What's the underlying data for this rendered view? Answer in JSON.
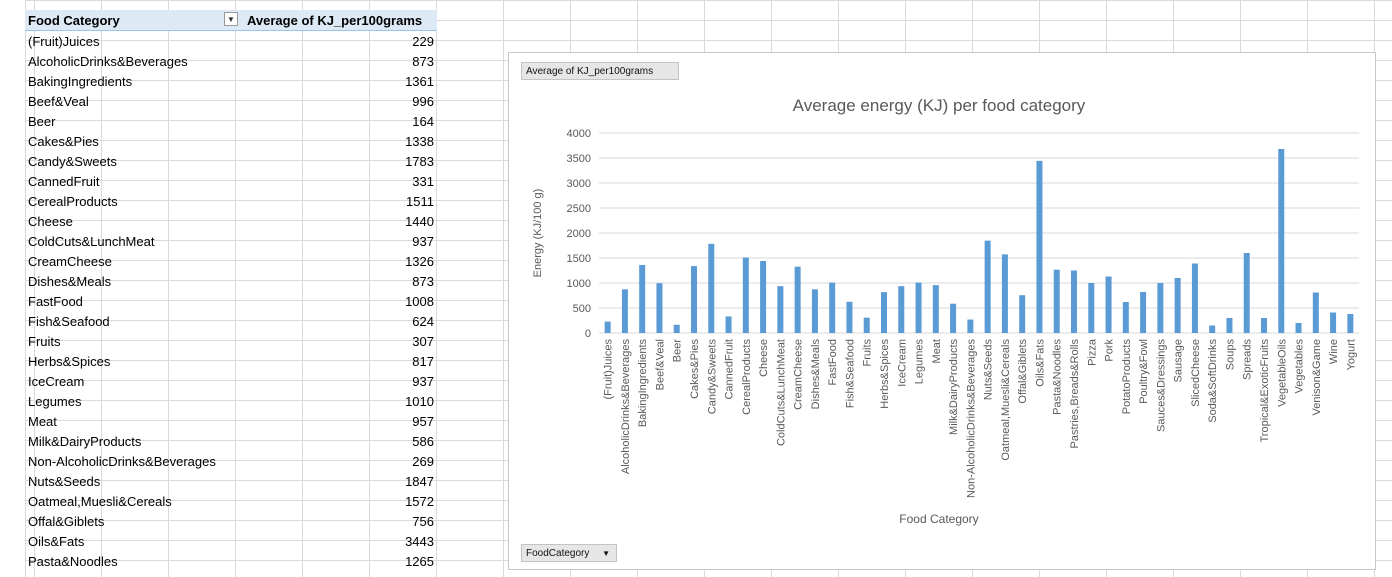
{
  "pivot_table": {
    "header_category": "Food Category",
    "header_value": "Average of KJ_per100grams",
    "rows": [
      {
        "category": "(Fruit)Juices",
        "value": "229"
      },
      {
        "category": "AlcoholicDrinks&Beverages",
        "value": "873"
      },
      {
        "category": "BakingIngredients",
        "value": "1361"
      },
      {
        "category": "Beef&Veal",
        "value": "996"
      },
      {
        "category": "Beer",
        "value": "164"
      },
      {
        "category": "Cakes&Pies",
        "value": "1338"
      },
      {
        "category": "Candy&Sweets",
        "value": "1783"
      },
      {
        "category": "CannedFruit",
        "value": "331"
      },
      {
        "category": "CerealProducts",
        "value": "1511"
      },
      {
        "category": "Cheese",
        "value": "1440"
      },
      {
        "category": "ColdCuts&LunchMeat",
        "value": "937"
      },
      {
        "category": "CreamCheese",
        "value": "1326"
      },
      {
        "category": "Dishes&Meals",
        "value": "873"
      },
      {
        "category": "FastFood",
        "value": "1008"
      },
      {
        "category": "Fish&Seafood",
        "value": "624"
      },
      {
        "category": "Fruits",
        "value": "307"
      },
      {
        "category": "Herbs&Spices",
        "value": "817"
      },
      {
        "category": "IceCream",
        "value": "937"
      },
      {
        "category": "Legumes",
        "value": "1010"
      },
      {
        "category": "Meat",
        "value": "957"
      },
      {
        "category": "Milk&DairyProducts",
        "value": "586"
      },
      {
        "category": "Non-AlcoholicDrinks&Beverages",
        "value": "269"
      },
      {
        "category": "Nuts&Seeds",
        "value": "1847"
      },
      {
        "category": "Oatmeal,Muesli&Cereals",
        "value": "1572"
      },
      {
        "category": "Offal&Giblets",
        "value": "756"
      },
      {
        "category": "Oils&Fats",
        "value": "3443"
      },
      {
        "category": "Pasta&Noodles",
        "value": "1265"
      }
    ]
  },
  "chart_ui": {
    "value_field_button": "Average of KJ_per100grams",
    "axis_field_button": "FoodCategory"
  },
  "chart_data": {
    "type": "bar",
    "title": "Average energy (KJ) per food category",
    "xlabel": "Food Category",
    "ylabel": "Energy (KJ/100 g)",
    "ylim": [
      0,
      4000
    ],
    "yticks": [
      "0",
      "500",
      "1000",
      "1500",
      "2000",
      "2500",
      "3000",
      "3500",
      "4000"
    ],
    "grid": true,
    "bar_color": "#5b9bd5",
    "categories": [
      "(Fruit)Juices",
      "AlcoholicDrinks&Beverages",
      "BakingIngredients",
      "Beef&Veal",
      "Beer",
      "Cakes&Pies",
      "Candy&Sweets",
      "CannedFruit",
      "CerealProducts",
      "Cheese",
      "ColdCuts&LunchMeat",
      "CreamCheese",
      "Dishes&Meals",
      "FastFood",
      "Fish&Seafood",
      "Fruits",
      "Herbs&Spices",
      "IceCream",
      "Legumes",
      "Meat",
      "Milk&DairyProducts",
      "Non-AlcoholicDrinks&Beverages",
      "Nuts&Seeds",
      "Oatmeal,Muesli&Cereals",
      "Offal&Giblets",
      "Oils&Fats",
      "Pasta&Noodles",
      "Pastries,Breads&Rolls",
      "Pizza",
      "Pork",
      "PotatoProducts",
      "Poultry&Fowl",
      "Sauces&Dressings",
      "Sausage",
      "SlicedCheese",
      "Soda&SoftDrinks",
      "Soups",
      "Spreads",
      "Tropical&ExoticFruits",
      "VegetableOils",
      "Vegetables",
      "Venison&Game",
      "Wine",
      "Yogurt"
    ],
    "values": [
      229,
      873,
      1361,
      996,
      164,
      1338,
      1783,
      331,
      1511,
      1440,
      937,
      1326,
      873,
      1008,
      624,
      307,
      817,
      937,
      1010,
      957,
      586,
      269,
      1847,
      1572,
      756,
      3443,
      1265,
      1250,
      1000,
      1130,
      620,
      820,
      1000,
      1100,
      1390,
      150,
      300,
      1600,
      300,
      3680,
      200,
      810,
      410,
      380
    ]
  }
}
